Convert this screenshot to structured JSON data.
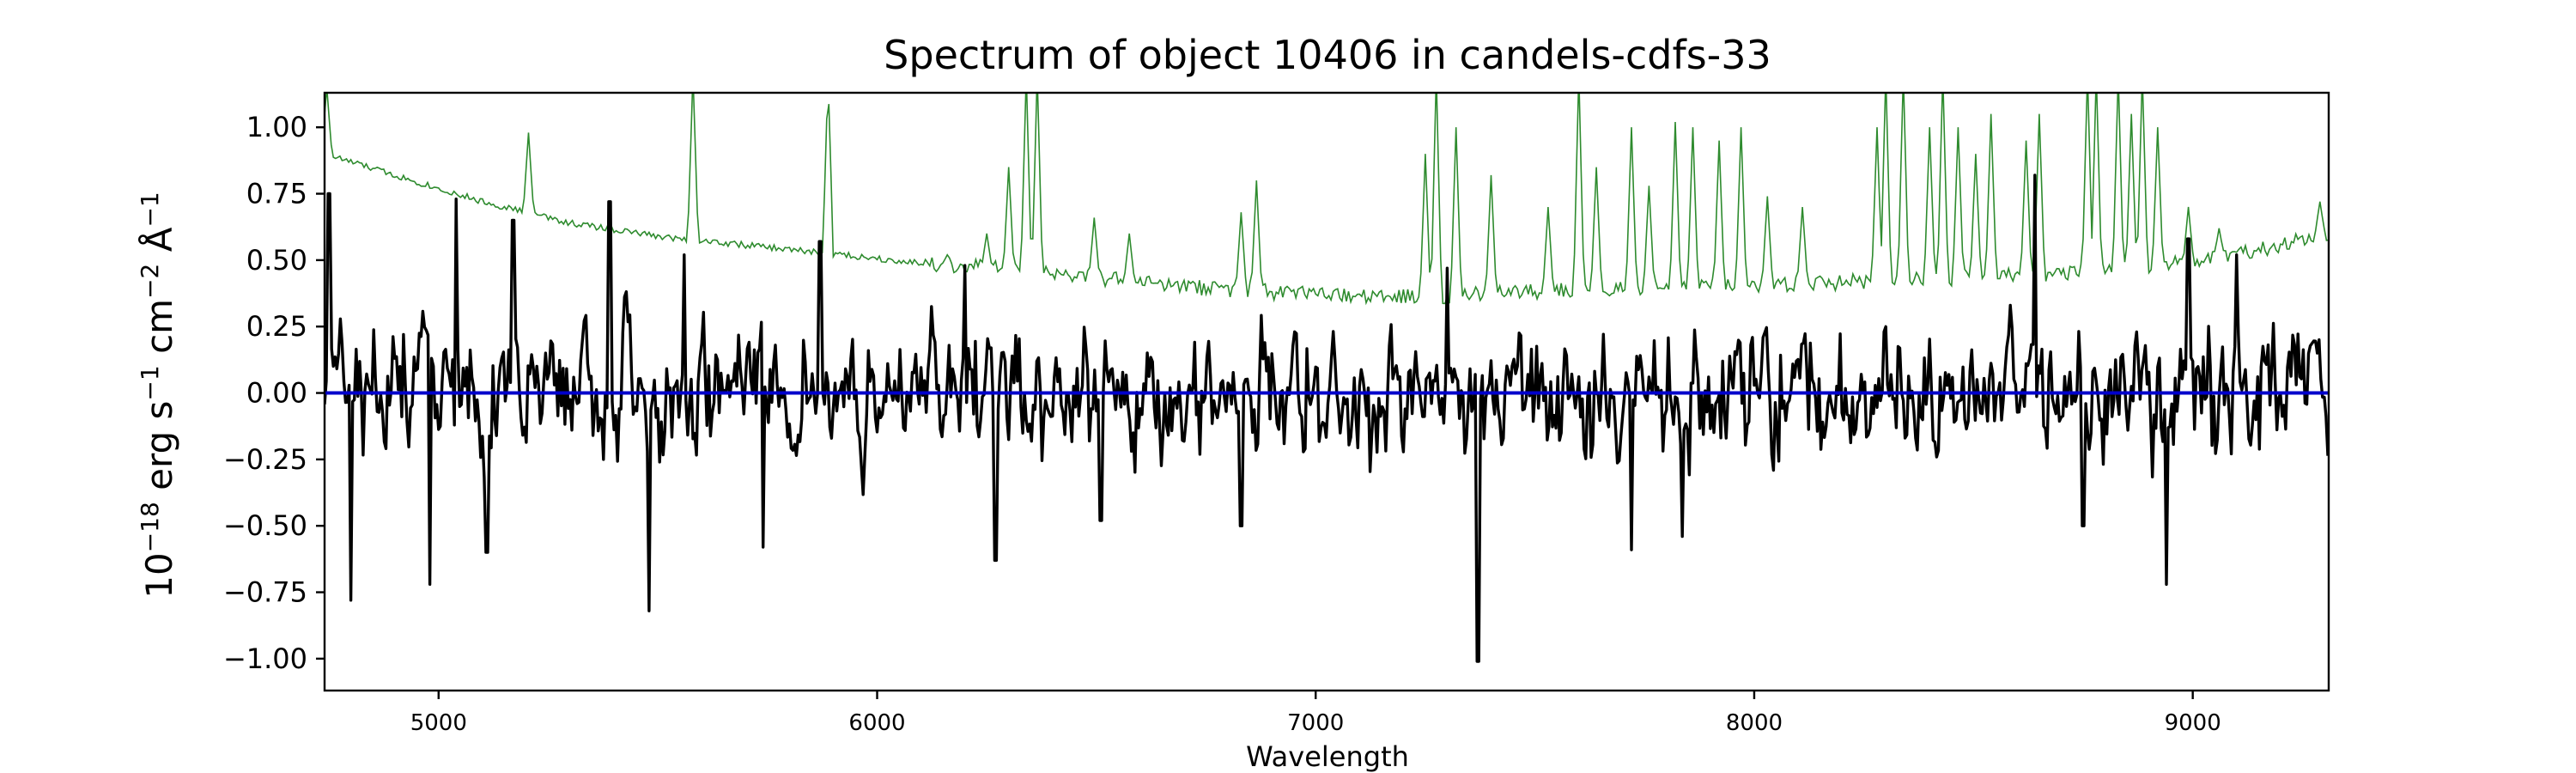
{
  "chart_data": {
    "type": "line",
    "title": "Spectrum of object 10406 in candels-cdfs-33",
    "xlabel": "Wavelength",
    "ylabel": {
      "prefix": "10",
      "exp": "−18",
      "units": [
        {
          "text": " erg s",
          "sup": "−1"
        },
        {
          "text": " cm",
          "sup": "−2"
        },
        {
          "text": " Å",
          "sup": "−1"
        }
      ]
    },
    "xlim": [
      4740,
      9310
    ],
    "ylim": [
      -1.12,
      1.13
    ],
    "xticks": [
      5000,
      6000,
      7000,
      8000,
      9000
    ],
    "xtick_labels": [
      "5000",
      "6000",
      "7000",
      "8000",
      "9000"
    ],
    "yticks": [
      -1.0,
      -0.75,
      -0.5,
      -0.25,
      0.0,
      0.25,
      0.5,
      0.75,
      1.0
    ],
    "ytick_labels": [
      "−1.00",
      "−0.75",
      "−0.50",
      "−0.25",
      "0.00",
      "0.25",
      "0.50",
      "0.75",
      "1.00"
    ],
    "grid": false,
    "series": [
      {
        "role": "error",
        "color": "#2e8b2e",
        "x_start": 4740,
        "x_end": 9310,
        "step": 5,
        "continuum": [
          [
            4740,
            0.9
          ],
          [
            4900,
            0.82
          ],
          [
            5100,
            0.72
          ],
          [
            5300,
            0.64
          ],
          [
            5500,
            0.59
          ],
          [
            5800,
            0.54
          ],
          [
            6100,
            0.49
          ],
          [
            6400,
            0.45
          ],
          [
            6700,
            0.4
          ],
          [
            7000,
            0.37
          ],
          [
            7200,
            0.36
          ],
          [
            7500,
            0.38
          ],
          [
            7800,
            0.4
          ],
          [
            8100,
            0.41
          ],
          [
            8400,
            0.43
          ],
          [
            8700,
            0.45
          ],
          [
            8900,
            0.47
          ],
          [
            9100,
            0.52
          ],
          [
            9310,
            0.6
          ]
        ],
        "noise": 0.012,
        "lines": [
          [
            4745,
            1.15
          ],
          [
            5205,
            0.98
          ],
          [
            5580,
            1.2
          ],
          [
            5888,
            1.2
          ],
          [
            6160,
            0.52
          ],
          [
            6250,
            0.6
          ],
          [
            6300,
            0.85
          ],
          [
            6340,
            1.2
          ],
          [
            6365,
            1.2
          ],
          [
            6495,
            0.66
          ],
          [
            6575,
            0.6
          ],
          [
            6830,
            0.68
          ],
          [
            6865,
            0.8
          ],
          [
            7250,
            0.9
          ],
          [
            7275,
            1.2
          ],
          [
            7320,
            1.0
          ],
          [
            7400,
            0.82
          ],
          [
            7530,
            0.7
          ],
          [
            7600,
            1.2
          ],
          [
            7640,
            0.85
          ],
          [
            7720,
            1.0
          ],
          [
            7760,
            0.78
          ],
          [
            7820,
            1.02
          ],
          [
            7860,
            1.0
          ],
          [
            7920,
            0.95
          ],
          [
            7970,
            1.0
          ],
          [
            8030,
            0.74
          ],
          [
            8110,
            0.7
          ],
          [
            8280,
            1.0
          ],
          [
            8300,
            1.2
          ],
          [
            8340,
            1.2
          ],
          [
            8400,
            1.0
          ],
          [
            8430,
            1.2
          ],
          [
            8465,
            1.0
          ],
          [
            8505,
            0.9
          ],
          [
            8540,
            1.05
          ],
          [
            8620,
            0.95
          ],
          [
            8650,
            1.05
          ],
          [
            8760,
            1.2
          ],
          [
            8780,
            1.2
          ],
          [
            8830,
            1.2
          ],
          [
            8860,
            1.05
          ],
          [
            8885,
            1.2
          ],
          [
            8920,
            1.0
          ],
          [
            8990,
            0.7
          ],
          [
            9060,
            0.62
          ],
          [
            9290,
            0.72
          ]
        ]
      },
      {
        "role": "flux",
        "color": "#000000",
        "x_start": 4740,
        "x_end": 9310,
        "step": 4,
        "seed": 10406,
        "noise": 0.2,
        "dips": [
          [
            4800,
            -0.78
          ],
          [
            4980,
            -0.72
          ],
          [
            5110,
            -0.6
          ],
          [
            5480,
            -0.82
          ],
          [
            5740,
            -0.58
          ],
          [
            6270,
            -0.63
          ],
          [
            6510,
            -0.48
          ],
          [
            6830,
            -0.5
          ],
          [
            7370,
            -1.01
          ],
          [
            7720,
            -0.59
          ],
          [
            7835,
            -0.54
          ],
          [
            8750,
            -0.5
          ],
          [
            8940,
            -0.72
          ]
        ],
        "peaks": [
          [
            4750,
            0.75
          ],
          [
            5040,
            0.73
          ],
          [
            5170,
            0.65
          ],
          [
            5390,
            0.72
          ],
          [
            5560,
            0.52
          ],
          [
            5870,
            0.57
          ],
          [
            6200,
            0.48
          ],
          [
            7300,
            0.47
          ],
          [
            8640,
            0.82
          ],
          [
            8990,
            0.58
          ],
          [
            9100,
            0.52
          ]
        ]
      },
      {
        "role": "zero",
        "color": "#0000cc",
        "x": [
          4740,
          9310
        ],
        "values": [
          0.0,
          0.0
        ]
      }
    ]
  }
}
